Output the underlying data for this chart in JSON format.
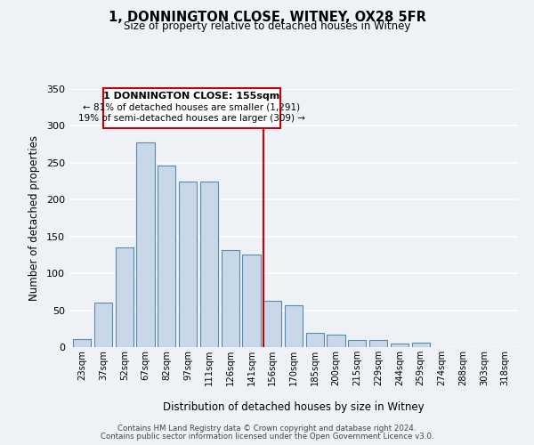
{
  "title": "1, DONNINGTON CLOSE, WITNEY, OX28 5FR",
  "subtitle": "Size of property relative to detached houses in Witney",
  "xlabel": "Distribution of detached houses by size in Witney",
  "ylabel": "Number of detached properties",
  "bar_labels": [
    "23sqm",
    "37sqm",
    "52sqm",
    "67sqm",
    "82sqm",
    "97sqm",
    "111sqm",
    "126sqm",
    "141sqm",
    "156sqm",
    "170sqm",
    "185sqm",
    "200sqm",
    "215sqm",
    "229sqm",
    "244sqm",
    "259sqm",
    "274sqm",
    "288sqm",
    "303sqm",
    "318sqm"
  ],
  "bar_values": [
    11,
    60,
    135,
    278,
    246,
    224,
    225,
    132,
    125,
    63,
    57,
    19,
    17,
    10,
    10,
    5,
    6,
    0,
    0,
    0,
    0
  ],
  "bar_color": "#c8d8e8",
  "bar_edge_color": "#5a8aaa",
  "highlight_color": "#cc0000",
  "annotation_title": "1 DONNINGTON CLOSE: 155sqm",
  "annotation_line1": "← 81% of detached houses are smaller (1,291)",
  "annotation_line2": "19% of semi-detached houses are larger (309) →",
  "annotation_box_color": "#cc0000",
  "ylim": [
    0,
    350
  ],
  "yticks": [
    0,
    50,
    100,
    150,
    200,
    250,
    300,
    350
  ],
  "footer_line1": "Contains HM Land Registry data © Crown copyright and database right 2024.",
  "footer_line2": "Contains public sector information licensed under the Open Government Licence v3.0.",
  "bg_color": "#eef2f7",
  "grid_color": "#ffffff"
}
